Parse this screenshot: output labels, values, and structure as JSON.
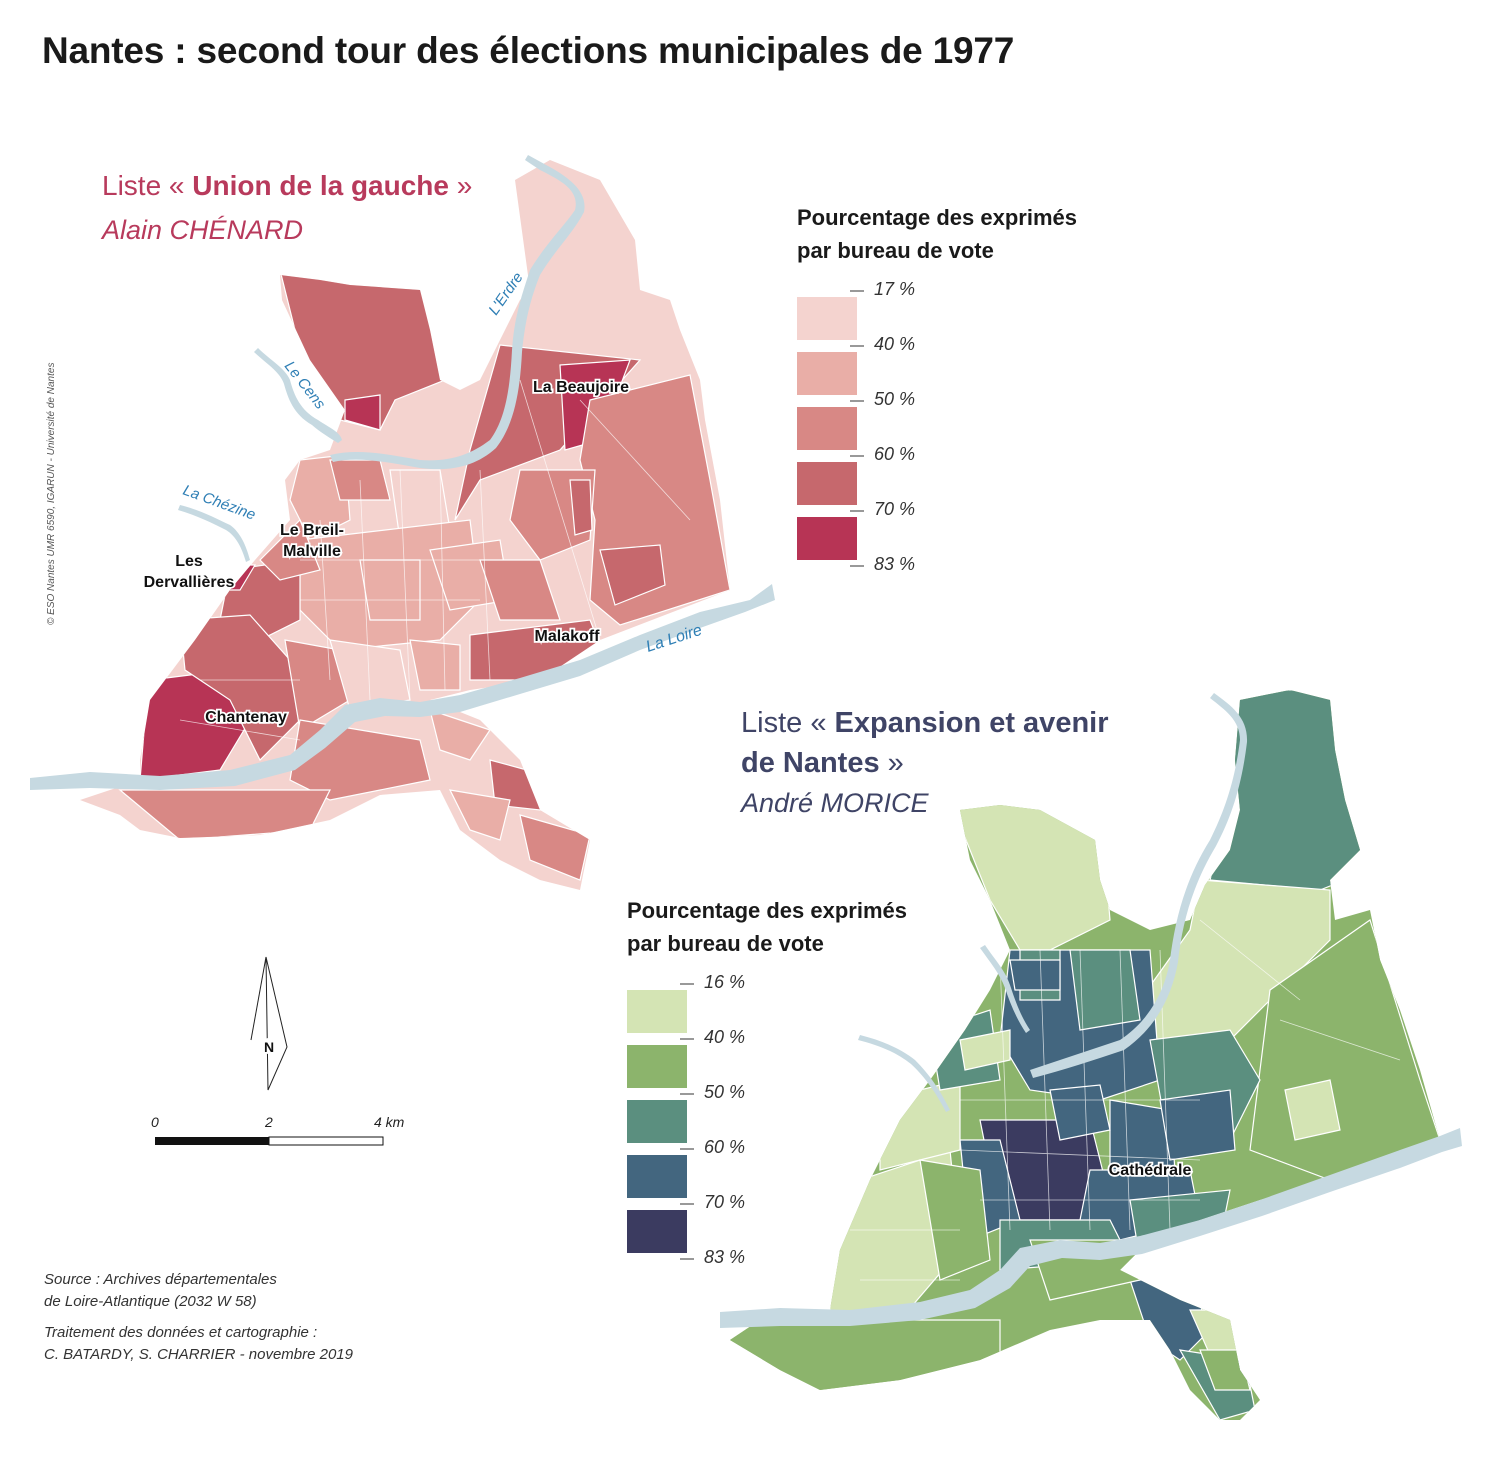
{
  "title": "Nantes : second tour des élections municipales de 1977",
  "credit": "© ESO Nantes UMR 6590, IGARUN - Université de Nantes",
  "map_left": {
    "list_prefix": "Liste «",
    "list_name": "Union de la gauche",
    "list_suffix": "»",
    "candidate": "Alain CHÉNARD",
    "legend_title_line1": "Pourcentage des exprimés",
    "legend_title_line2": "par bureau de vote",
    "legend_breaks": [
      "17 %",
      "40 %",
      "50 %",
      "60 %",
      "70 %",
      "83 %"
    ],
    "legend_colors": [
      "#f4d3cf",
      "#e9aea7",
      "#d88885",
      "#c6686d",
      "#b73455"
    ],
    "places": [
      "La Beaujoire",
      "Le Breil-",
      "Malville",
      "Les",
      "Dervallières",
      "Malakoff",
      "Chantenay"
    ],
    "rivers": [
      "L'Erdre",
      "Le Cens",
      "La Chézine",
      "La Loire"
    ]
  },
  "map_right": {
    "list_prefix": "Liste «",
    "list_name_line1": "Expansion et avenir",
    "list_name_line2": "de Nantes",
    "list_suffix": "»",
    "candidate": "André MORICE",
    "legend_title_line1": "Pourcentage des exprimés",
    "legend_title_line2": "par bureau de vote",
    "legend_breaks": [
      "16 %",
      "40 %",
      "50 %",
      "60 %",
      "70 %",
      "83 %"
    ],
    "legend_colors": [
      "#d4e4b4",
      "#8cb46c",
      "#5b8f7f",
      "#43667f",
      "#3b3b60"
    ],
    "places": [
      "Cathédrale"
    ]
  },
  "north_label": "N",
  "scale": {
    "ticks": [
      "0",
      "2",
      "4 km"
    ]
  },
  "source_line1": "Source : Archives départementales",
  "source_line2": "de Loire-Atlantique (2032 W 58)",
  "source_line3": "Traitement des données et cartographie :",
  "source_line4": "C. BATARDY, S. CHARRIER - novembre 2019",
  "colors": {
    "river": "#c6d9e1",
    "river_label": "#2f7fb5",
    "left_accent": "#b83a5c",
    "right_accent": "#3f4466"
  }
}
